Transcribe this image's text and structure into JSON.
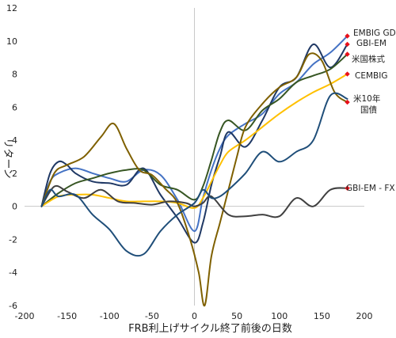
{
  "chart_data": {
    "type": "line",
    "title": "",
    "xlabel": "FRB利上げサイクル終了前後の日数",
    "ylabel": "リターン",
    "xlim": [
      -200,
      200
    ],
    "ylim": [
      -6,
      12
    ],
    "xticks": [
      -200,
      -150,
      -100,
      -50,
      0,
      50,
      100,
      150,
      200
    ],
    "yticks": [
      -6,
      -4,
      -2,
      0,
      2,
      4,
      6,
      8,
      10,
      12
    ],
    "grid": false,
    "legend": "none; series are labelled at the right end of each line",
    "series": [
      {
        "name": "EMBIG GD",
        "color": "#4472c4",
        "x": [
          -180,
          -170,
          -160,
          -140,
          -120,
          -100,
          -80,
          -60,
          -40,
          -20,
          0,
          10,
          20,
          30,
          40,
          60,
          80,
          100,
          120,
          140,
          160,
          180
        ],
        "y": [
          0,
          1.5,
          2.0,
          2.3,
          2.0,
          1.7,
          1.5,
          2.2,
          1.9,
          0.4,
          -1.5,
          0.5,
          2.2,
          3.5,
          4.3,
          5.0,
          5.6,
          6.8,
          7.5,
          8.6,
          9.3,
          10.3
        ]
      },
      {
        "name": "GBI-EM",
        "color": "#1f3864",
        "x": [
          -180,
          -170,
          -160,
          -150,
          -140,
          -120,
          -100,
          -80,
          -60,
          -40,
          -20,
          0,
          10,
          20,
          30,
          40,
          60,
          80,
          100,
          120,
          140,
          160,
          180
        ],
        "y": [
          0,
          2.0,
          2.7,
          2.5,
          2.0,
          1.5,
          1.4,
          1.3,
          2.3,
          0.7,
          -0.7,
          -2.2,
          -1.0,
          1.3,
          3.0,
          4.5,
          3.6,
          5.2,
          7.2,
          7.8,
          9.8,
          8.4,
          9.8
        ]
      },
      {
        "name": "米国株式",
        "color": "#375623",
        "x": [
          -180,
          -160,
          -140,
          -120,
          -100,
          -80,
          -60,
          -40,
          -20,
          0,
          10,
          20,
          30,
          40,
          60,
          80,
          100,
          120,
          140,
          160,
          180
        ],
        "y": [
          0,
          0.8,
          1.4,
          1.7,
          2.0,
          2.2,
          2.2,
          1.3,
          1.0,
          0.4,
          1.2,
          2.8,
          4.5,
          5.2,
          4.6,
          5.8,
          6.5,
          7.5,
          7.9,
          8.3,
          9.2
        ]
      },
      {
        "name": "CEMBIG",
        "color": "#ffc000",
        "x": [
          -180,
          -160,
          -140,
          -120,
          -100,
          -80,
          -60,
          -40,
          -20,
          0,
          10,
          20,
          30,
          40,
          60,
          80,
          100,
          120,
          140,
          160,
          180
        ],
        "y": [
          0,
          0.6,
          0.7,
          0.7,
          0.5,
          0.3,
          0.3,
          0.3,
          0.2,
          -0.1,
          0.5,
          1.5,
          2.5,
          3.3,
          4.0,
          4.8,
          5.6,
          6.3,
          6.9,
          7.4,
          8.0
        ]
      },
      {
        "name": "米10年国債",
        "color": "#7f6000",
        "x": [
          -180,
          -165,
          -150,
          -130,
          -110,
          -95,
          -80,
          -65,
          -50,
          -35,
          -20,
          -5,
          5,
          12,
          20,
          30,
          40,
          50,
          60,
          80,
          100,
          120,
          135,
          150,
          165,
          180
        ],
        "y": [
          0,
          2.0,
          2.5,
          3.0,
          4.2,
          5.0,
          3.5,
          2.2,
          1.9,
          1.1,
          0.2,
          -2.0,
          -4.0,
          -6.0,
          -3.0,
          -1.0,
          1.0,
          3.0,
          4.8,
          6.2,
          7.2,
          7.8,
          9.2,
          8.8,
          6.9,
          6.3
        ]
      },
      {
        "name": "GBI-EM - FX",
        "color": "#404040",
        "x": [
          -180,
          -165,
          -150,
          -130,
          -110,
          -90,
          -70,
          -50,
          -30,
          -10,
          0,
          10,
          20,
          40,
          60,
          80,
          100,
          120,
          140,
          160,
          180
        ],
        "y": [
          0,
          1.2,
          0.9,
          0.5,
          1.0,
          0.3,
          0.2,
          0.1,
          0.3,
          0.2,
          0.0,
          0.2,
          0.6,
          -0.5,
          -0.6,
          -0.5,
          -0.6,
          0.5,
          0.0,
          1.0,
          1.1
        ]
      },
      {
        "name": "",
        "color": "#1f4e79",
        "x": [
          -180,
          -170,
          -160,
          -140,
          -120,
          -100,
          -80,
          -60,
          -40,
          -20,
          0,
          10,
          20,
          30,
          40,
          60,
          80,
          100,
          120,
          140,
          160,
          180
        ],
        "y": [
          0,
          1.0,
          0.6,
          0.7,
          -0.5,
          -1.4,
          -2.7,
          -2.9,
          -1.5,
          -0.5,
          0.2,
          1.0,
          0.5,
          0.6,
          1.0,
          2.0,
          3.3,
          2.7,
          3.3,
          4.0,
          6.7,
          6.5
        ]
      }
    ],
    "labels": [
      {
        "text": "EMBIG GD",
        "series": 0
      },
      {
        "text": "GBI-EM",
        "series": 1
      },
      {
        "text": "米国株式",
        "series": 2
      },
      {
        "text": "CEMBIG",
        "series": 3
      },
      {
        "text": "米10年",
        "series": 4
      },
      {
        "text": "国債",
        "series": 4
      },
      {
        "text": "GBI-EM -  FX",
        "series": 5
      }
    ],
    "marker_color": "#e8101a"
  }
}
